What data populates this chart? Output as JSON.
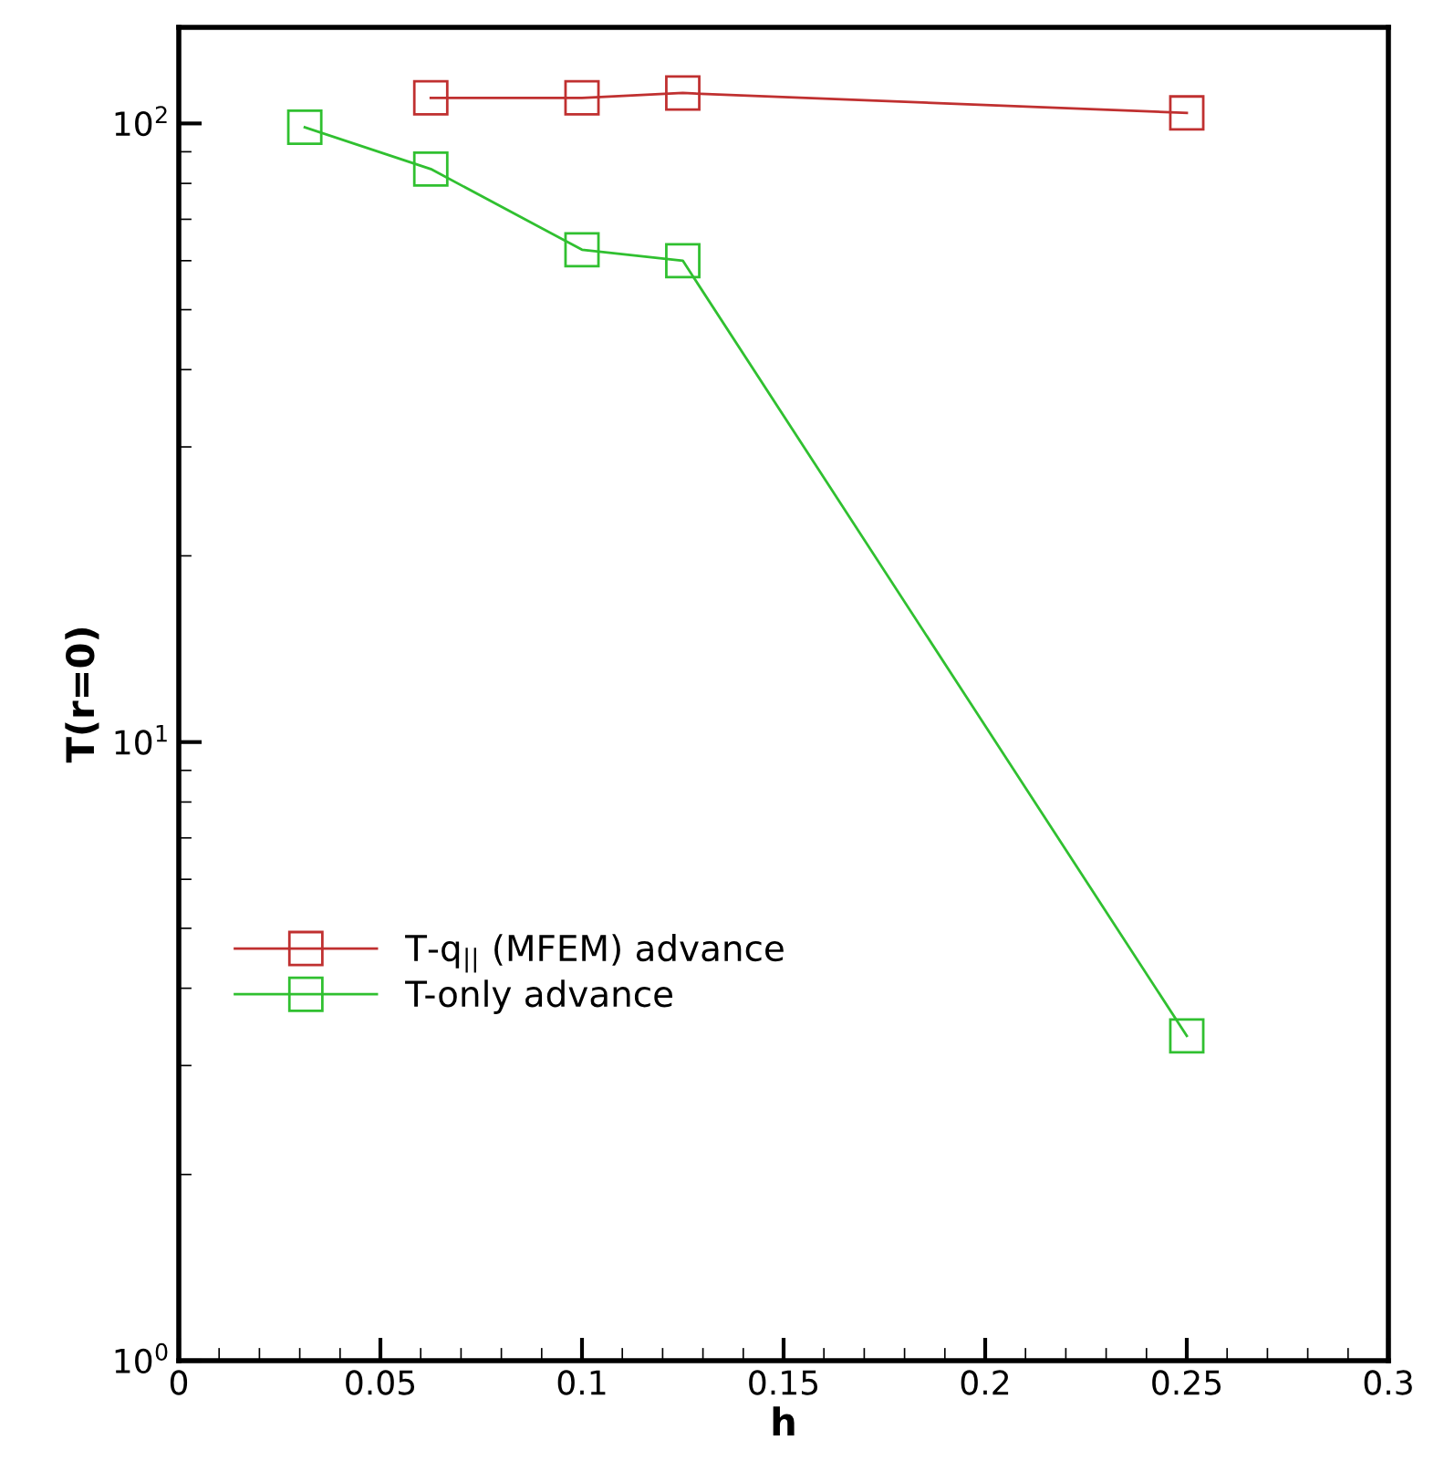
{
  "chart_data": {
    "type": "line",
    "xlabel": "h",
    "ylabel": "T(r=0)",
    "log": "y",
    "xlim": [
      0,
      0.3
    ],
    "xticks": [
      0,
      0.05,
      0.1,
      0.15,
      0.2,
      0.25,
      0.3
    ],
    "ylim": [
      1,
      143
    ],
    "yticks": [
      {
        "value": 1,
        "label": "10$^{0}$"
      },
      {
        "value": 10,
        "label": "10$^{1}$"
      },
      {
        "value": 100,
        "label": "10$^{2}$"
      }
    ],
    "marker": "square",
    "line_style": "solid",
    "grid": false,
    "legend": "left",
    "series": [
      {
        "name": "T-q$_{||}$ (MFEM) advance",
        "color": "#c03030",
        "x": [
          0.0625,
          0.1,
          0.125,
          0.25
        ],
        "values": [
          110,
          110,
          112,
          104
        ]
      },
      {
        "name": "T-only advance",
        "color": "#30c030",
        "x": [
          0.03125,
          0.0625,
          0.1,
          0.125,
          0.25
        ],
        "values": [
          98.6,
          84.4,
          62.5,
          60,
          3.35
        ]
      }
    ]
  }
}
